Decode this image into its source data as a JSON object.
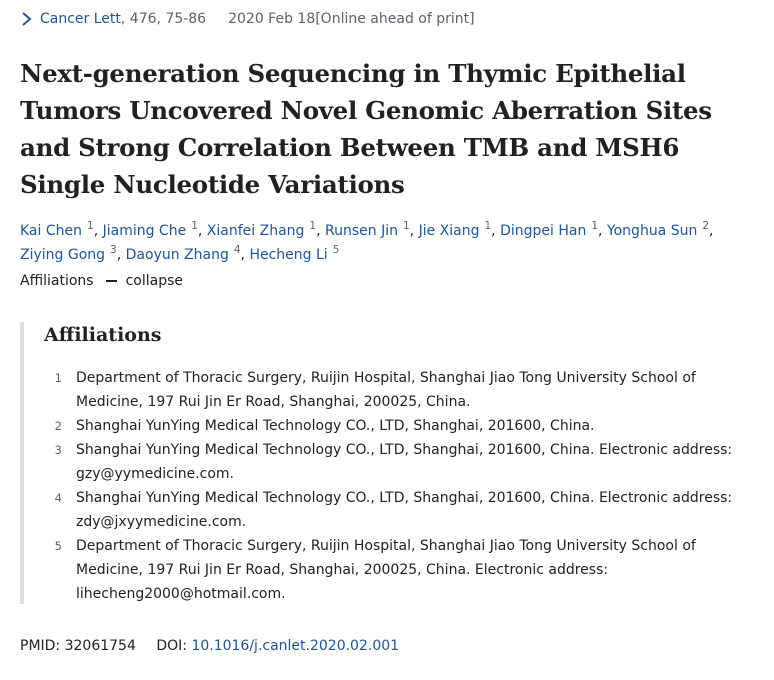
{
  "citation": {
    "journal": "Cancer Lett",
    "volume_pages": ", 476, 75-86",
    "date": "2020 Feb 18[Online ahead of print]"
  },
  "title": "Next-generation Sequencing in Thymic Epithelial Tumors Uncovered Novel Genomic Aberration Sites and Strong Correlation Between TMB and MSH6 Single Nucleotide Variations",
  "authors": [
    {
      "name": "Kai Chen",
      "aff": "1"
    },
    {
      "name": "Jiaming Che",
      "aff": "1"
    },
    {
      "name": "Xianfei Zhang",
      "aff": "1"
    },
    {
      "name": "Runsen Jin",
      "aff": "1"
    },
    {
      "name": "Jie Xiang",
      "aff": "1"
    },
    {
      "name": "Dingpei Han",
      "aff": "1"
    },
    {
      "name": "Yonghua Sun",
      "aff": "2"
    },
    {
      "name": "Ziying Gong",
      "aff": "3"
    },
    {
      "name": "Daoyun Zhang",
      "aff": "4"
    },
    {
      "name": "Hecheng Li",
      "aff": "5"
    }
  ],
  "affiliations_toggle": {
    "label": "Affiliations",
    "action": "collapse"
  },
  "affiliations": {
    "heading": "Affiliations",
    "items": [
      {
        "num": "1",
        "text": "Department of Thoracic Surgery, Ruijin Hospital, Shanghai Jiao Tong University School of Medicine, 197 Rui Jin Er Road, Shanghai, 200025, China."
      },
      {
        "num": "2",
        "text": "Shanghai YunYing Medical Technology CO., LTD, Shanghai, 201600, China."
      },
      {
        "num": "3",
        "text": "Shanghai YunYing Medical Technology CO., LTD, Shanghai, 201600, China. Electronic address: gzy@yymedicine.com."
      },
      {
        "num": "4",
        "text": "Shanghai YunYing Medical Technology CO., LTD, Shanghai, 201600, China. Electronic address: zdy@jxyymedicine.com."
      },
      {
        "num": "5",
        "text": "Department of Thoracic Surgery, Ruijin Hospital, Shanghai Jiao Tong University School of Medicine, 197 Rui Jin Er Road, Shanghai, 200025, China. Electronic address: lihecheng2000@hotmail.com."
      }
    ]
  },
  "identifiers": {
    "pmid_label": "PMID:",
    "pmid": "32061754",
    "doi_label": "DOI:",
    "doi": "10.1016/j.canlet.2020.02.001"
  },
  "colors": {
    "link": "#205493",
    "text": "#212121",
    "muted": "#5b616b",
    "border": "#dcdee0"
  }
}
